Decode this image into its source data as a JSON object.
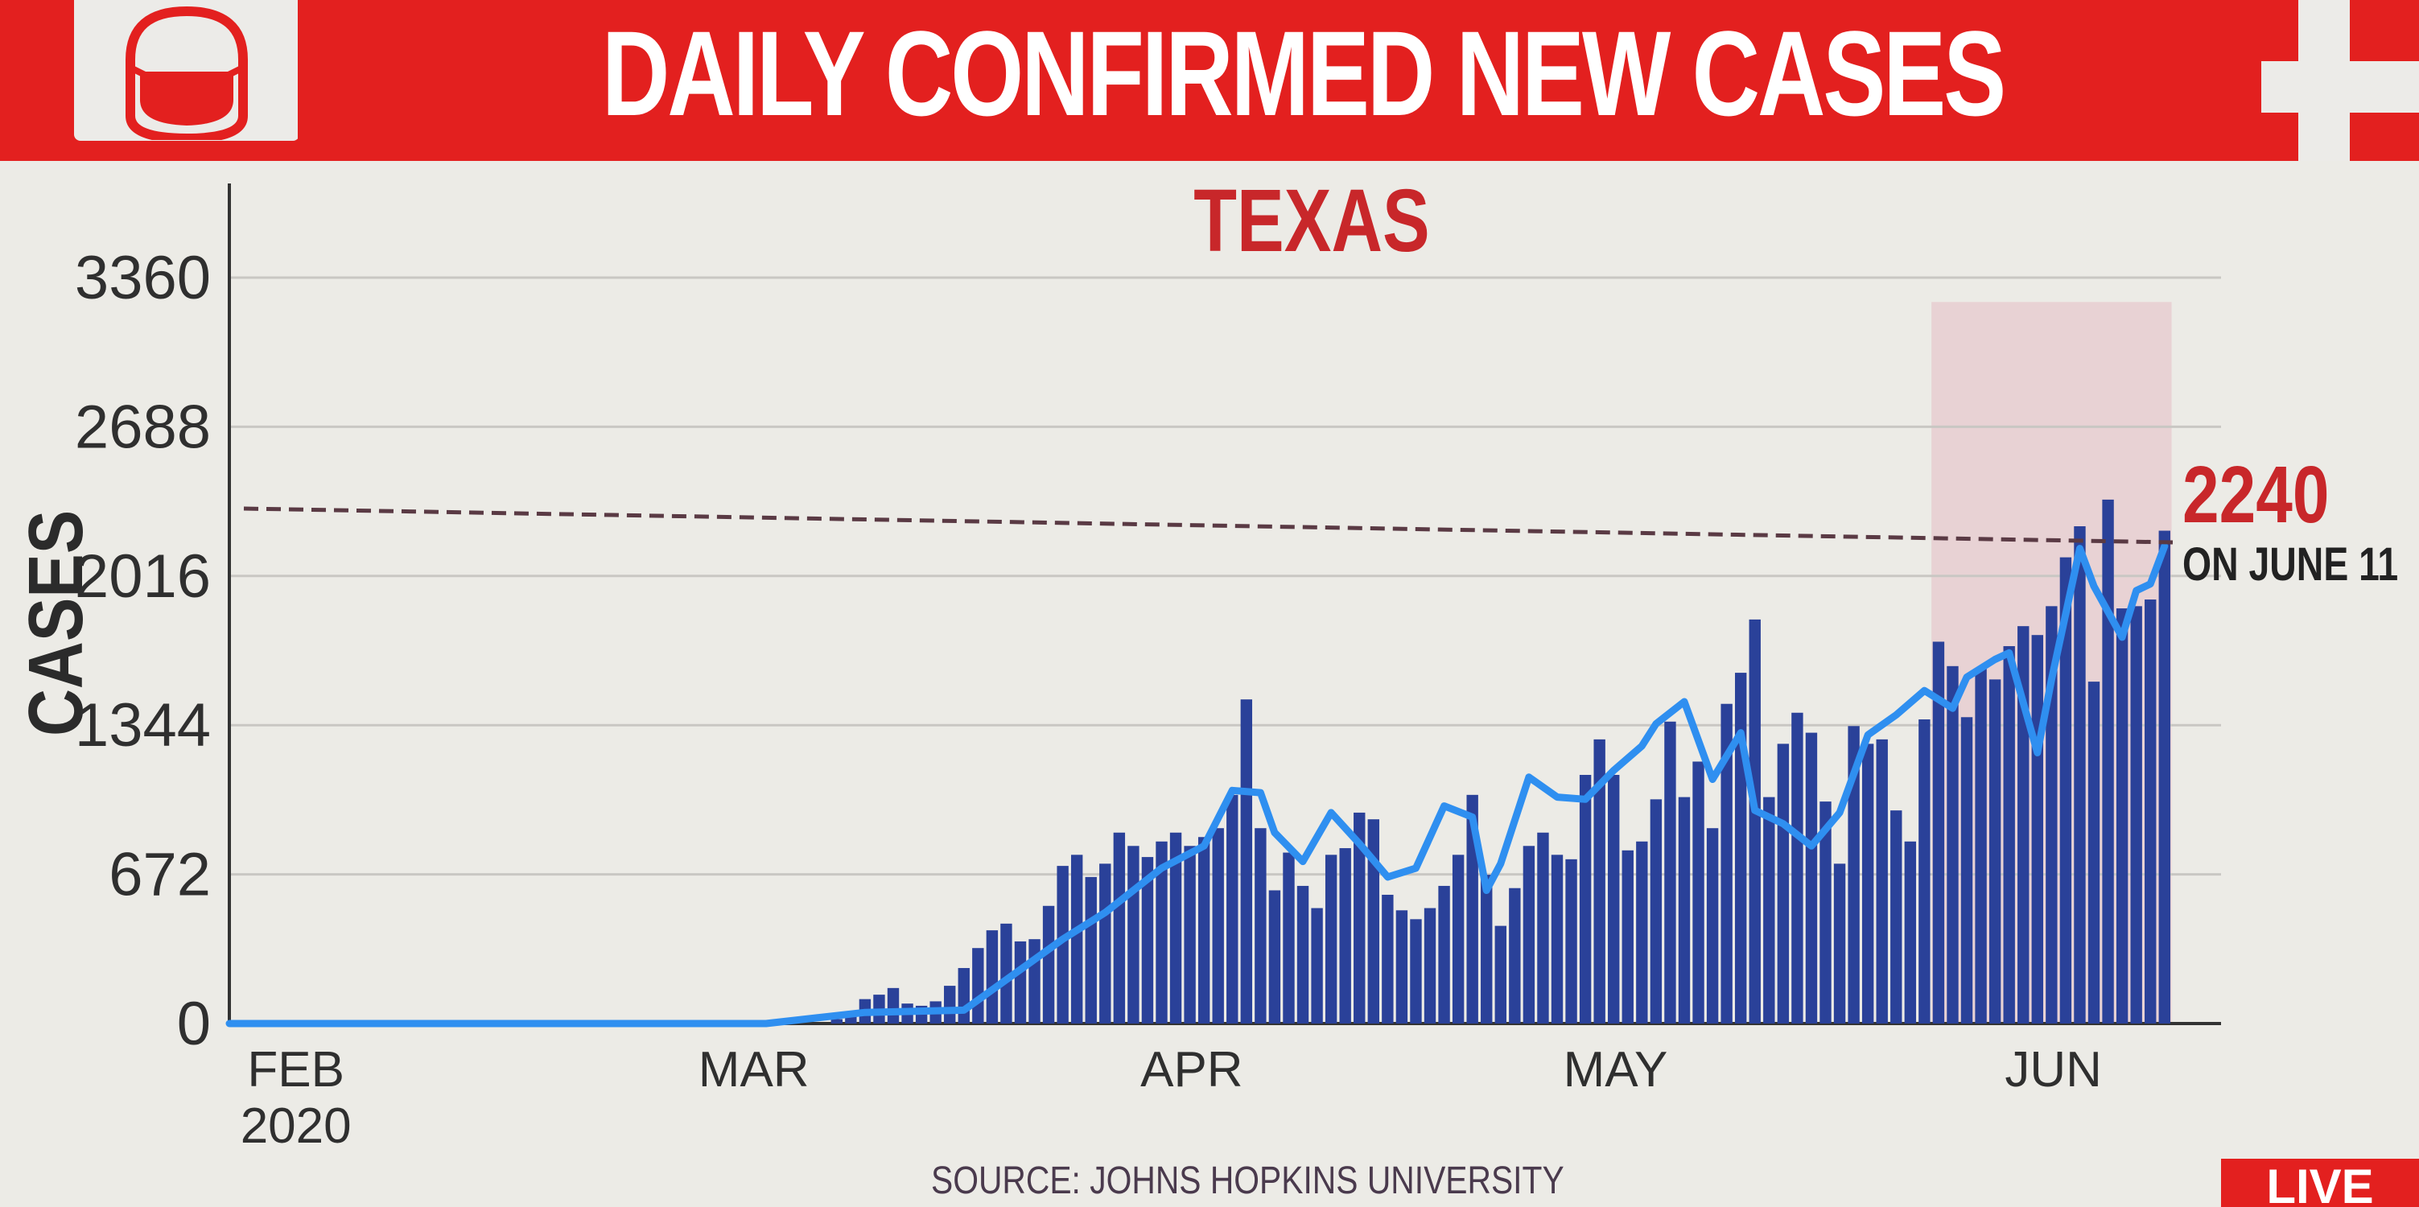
{
  "header": {
    "title": "DAILY CONFIRMED NEW CASES"
  },
  "icons": {
    "logo": "face-mask-icon",
    "corner": "medical-cross-icon"
  },
  "colors": {
    "banner_red": "#e3201f",
    "bar_blue": "#2a4199",
    "avg_line": "#2f8ff0",
    "accent_red": "#c8272a",
    "highlight": "#e8d2d4"
  },
  "chart_data": {
    "type": "bar",
    "title": "DAILY CONFIRMED NEW CASES",
    "subtitle": "TEXAS",
    "ylabel": "CASES",
    "ylim": [
      0,
      3360
    ],
    "yticks": [
      "0",
      "672",
      "1344",
      "2016",
      "2688",
      "3360"
    ],
    "xticks": [
      {
        "label": "FEB",
        "sublabel": "2020",
        "date": "2020-02-01"
      },
      {
        "label": "MAR",
        "sublabel": "",
        "date": "2020-03-01"
      },
      {
        "label": "APR",
        "sublabel": "",
        "date": "2020-04-01"
      },
      {
        "label": "MAY",
        "sublabel": "",
        "date": "2020-05-01"
      },
      {
        "label": "JUN",
        "sublabel": "",
        "date": "2020-06-01"
      }
    ],
    "legend": "none",
    "grid": true,
    "series": [
      {
        "type": "bar",
        "dates": [
          "2020-03-15",
          "2020-03-16",
          "2020-03-17",
          "2020-03-18",
          "2020-03-19",
          "2020-03-20",
          "2020-03-21",
          "2020-03-22",
          "2020-03-23",
          "2020-03-24",
          "2020-03-25",
          "2020-03-26",
          "2020-03-27",
          "2020-03-28",
          "2020-03-29",
          "2020-03-30",
          "2020-03-31",
          "2020-04-01",
          "2020-04-02",
          "2020-04-03",
          "2020-04-04",
          "2020-04-05",
          "2020-04-06",
          "2020-04-07",
          "2020-04-08",
          "2020-04-09",
          "2020-04-10",
          "2020-04-11",
          "2020-04-12",
          "2020-04-13",
          "2020-04-14",
          "2020-04-15",
          "2020-04-16",
          "2020-04-17",
          "2020-04-18",
          "2020-04-19",
          "2020-04-20",
          "2020-04-21",
          "2020-04-22",
          "2020-04-23",
          "2020-04-24",
          "2020-04-25",
          "2020-04-26",
          "2020-04-27",
          "2020-04-28",
          "2020-04-29",
          "2020-04-30",
          "2020-05-01",
          "2020-05-02",
          "2020-05-03",
          "2020-05-04",
          "2020-05-05",
          "2020-05-06",
          "2020-05-07",
          "2020-05-08",
          "2020-05-09",
          "2020-05-10",
          "2020-05-11",
          "2020-05-12",
          "2020-05-13",
          "2020-05-14",
          "2020-05-15",
          "2020-05-16",
          "2020-05-17",
          "2020-05-18",
          "2020-05-19",
          "2020-05-20",
          "2020-05-21",
          "2020-05-22",
          "2020-05-23",
          "2020-05-24",
          "2020-05-25",
          "2020-05-26",
          "2020-05-27",
          "2020-05-28",
          "2020-05-29",
          "2020-05-30",
          "2020-05-31",
          "2020-06-01",
          "2020-06-02",
          "2020-06-03",
          "2020-06-04",
          "2020-06-05",
          "2020-06-06",
          "2020-06-07",
          "2020-06-08",
          "2020-06-09",
          "2020-06-10",
          "2020-06-11",
          "2020-06-12",
          "2020-06-13",
          "2020-06-14",
          "2020-06-15",
          "2020-06-16",
          "2020-06-17"
        ],
        "values": [
          20,
          50,
          110,
          130,
          160,
          90,
          80,
          100,
          170,
          250,
          340,
          420,
          450,
          370,
          380,
          530,
          710,
          760,
          660,
          720,
          860,
          800,
          750,
          820,
          860,
          800,
          840,
          880,
          1030,
          1460,
          880,
          600,
          770,
          620,
          520,
          760,
          790,
          950,
          920,
          580,
          510,
          470,
          520,
          620,
          760,
          1030,
          670,
          440,
          610,
          800,
          860,
          760,
          740,
          1120,
          1280,
          1120,
          780,
          820,
          1010,
          1360,
          1020,
          1180,
          880,
          1440,
          1580,
          1820,
          1020,
          1260,
          1400,
          1310,
          1000,
          720,
          1340,
          1260,
          1280,
          960,
          820,
          1370,
          1720,
          1610,
          1380,
          1600,
          1550,
          1700,
          1790,
          1750,
          1880,
          2100,
          2240,
          1540,
          2360,
          1870,
          1880,
          1910,
          2220
        ]
      },
      {
        "type": "line",
        "name": "",
        "dates": [
          "2020-03-17",
          "2020-03-24",
          "2020-03-31",
          "2020-04-03",
          "2020-04-07",
          "2020-04-10",
          "2020-04-12",
          "2020-04-14",
          "2020-04-15",
          "2020-04-17",
          "2020-04-19",
          "2020-04-21",
          "2020-04-23",
          "2020-04-25",
          "2020-04-27",
          "2020-04-29",
          "2020-04-30",
          "2020-05-01",
          "2020-05-03",
          "2020-05-05",
          "2020-05-07",
          "2020-05-09",
          "2020-05-11",
          "2020-05-12",
          "2020-05-14",
          "2020-05-16",
          "2020-05-18",
          "2020-05-19",
          "2020-05-21",
          "2020-05-23",
          "2020-05-25",
          "2020-05-27",
          "2020-05-29",
          "2020-05-31",
          "2020-06-02",
          "2020-06-03",
          "2020-06-05",
          "2020-06-06",
          "2020-06-08",
          "2020-06-09",
          "2020-06-11",
          "2020-06-12",
          "2020-06-14",
          "2020-06-15",
          "2020-06-16",
          "2020-06-17"
        ],
        "values": [
          50,
          60,
          380,
          500,
          700,
          800,
          1050,
          1040,
          860,
          730,
          950,
          810,
          660,
          700,
          980,
          930,
          600,
          720,
          1110,
          1020,
          1010,
          1140,
          1250,
          1350,
          1450,
          1100,
          1310,
          960,
          900,
          800,
          950,
          1300,
          1390,
          1500,
          1420,
          1560,
          1640,
          1670,
          1220,
          1550,
          2140,
          1970,
          1740,
          1950,
          1980,
          2150
        ]
      }
    ],
    "highlight_range": [
      "2020-06-01",
      "2020-06-17"
    ],
    "reference_line": {
      "value": 2240
    },
    "annotation": {
      "value": "2240",
      "label": "ON JUNE 11"
    }
  },
  "source": "SOURCE: JOHNS HOPKINS UNIVERSITY",
  "live_badge": "LIVE"
}
